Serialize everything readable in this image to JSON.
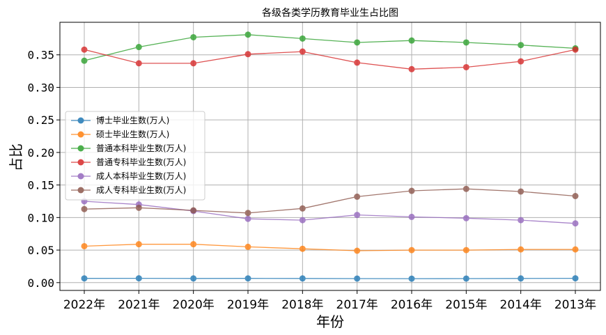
{
  "chart_data": {
    "type": "line",
    "title": "各级各类学历教育毕业生占比图",
    "xlabel": "年份",
    "ylabel": "占比",
    "categories": [
      "2022年",
      "2021年",
      "2020年",
      "2019年",
      "2018年",
      "2017年",
      "2016年",
      "2015年",
      "2014年",
      "2013年"
    ],
    "ylim": [
      -0.012,
      0.4
    ],
    "yticks": [
      0.0,
      0.05,
      0.1,
      0.15,
      0.2,
      0.25,
      0.3,
      0.35
    ],
    "ytick_labels": [
      "0.00",
      "0.05",
      "0.10",
      "0.15",
      "0.20",
      "0.25",
      "0.30",
      "0.35"
    ],
    "grid": true,
    "legend_position": "center-left",
    "series": [
      {
        "name": "博士毕业生数(万人)",
        "color": "#1f77b4",
        "values": [
          0.0065,
          0.0066,
          0.0064,
          0.0065,
          0.0064,
          0.0062,
          0.0061,
          0.0062,
          0.0064,
          0.0066
        ]
      },
      {
        "name": "硕士毕业生数(万人)",
        "color": "#ff7f0e",
        "values": [
          0.056,
          0.059,
          0.059,
          0.055,
          0.052,
          0.049,
          0.05,
          0.05,
          0.051,
          0.051
        ]
      },
      {
        "name": "普通本科毕业生数(万人)",
        "color": "#2ca02c",
        "values": [
          0.341,
          0.362,
          0.377,
          0.381,
          0.375,
          0.369,
          0.372,
          0.369,
          0.365,
          0.36
        ]
      },
      {
        "name": "普通专科毕业生数(万人)",
        "color": "#d62728",
        "values": [
          0.358,
          0.337,
          0.337,
          0.351,
          0.355,
          0.338,
          0.328,
          0.331,
          0.34,
          0.358
        ]
      },
      {
        "name": "成人本科毕业生数(万人)",
        "color": "#9467bd",
        "values": [
          0.125,
          0.12,
          0.11,
          0.098,
          0.096,
          0.104,
          0.101,
          0.099,
          0.096,
          0.091
        ]
      },
      {
        "name": "成人专科毕业生数(万人)",
        "color": "#8c564b",
        "values": [
          0.113,
          0.115,
          0.111,
          0.107,
          0.114,
          0.132,
          0.141,
          0.144,
          0.14,
          0.133
        ]
      }
    ]
  }
}
